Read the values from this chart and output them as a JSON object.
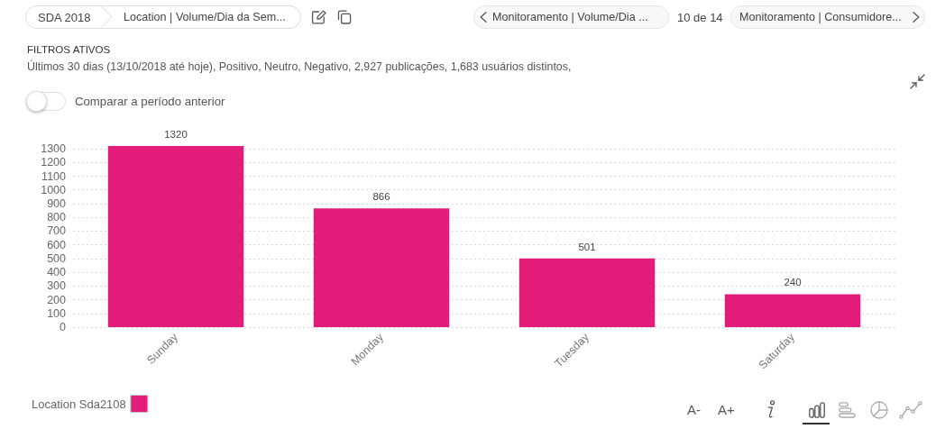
{
  "chart_data": {
    "type": "bar",
    "categories": [
      "Sunday",
      "Monday",
      "Tuesday",
      "Saturday"
    ],
    "series": [
      {
        "name": "Location Sda2108",
        "color": "#e31c79",
        "values": [
          1320,
          866,
          501,
          240
        ]
      }
    ],
    "ylim": [
      0,
      1320
    ],
    "yticks": [
      0,
      100,
      200,
      300,
      400,
      500,
      600,
      700,
      800,
      900,
      1000,
      1100,
      1200,
      1300
    ],
    "grid": "y",
    "legend": "bottom left",
    "data_labels": true,
    "annotations": [
      "SDA 2018",
      "Location | Volume/Dia da Sem...",
      "Monitoramento | Volume/Dia ...",
      "10 de 14",
      "Monitoramento | Consumidore...",
      "FILTROS ATIVOS",
      "Últimos 30 dias (13/10/2018 até hoje), Positivo, Neutro, Negativo, 2,927 publicações, 1,683 usuários distintos,",
      "Comparar a período anterior",
      "A-",
      "A+"
    ]
  }
}
